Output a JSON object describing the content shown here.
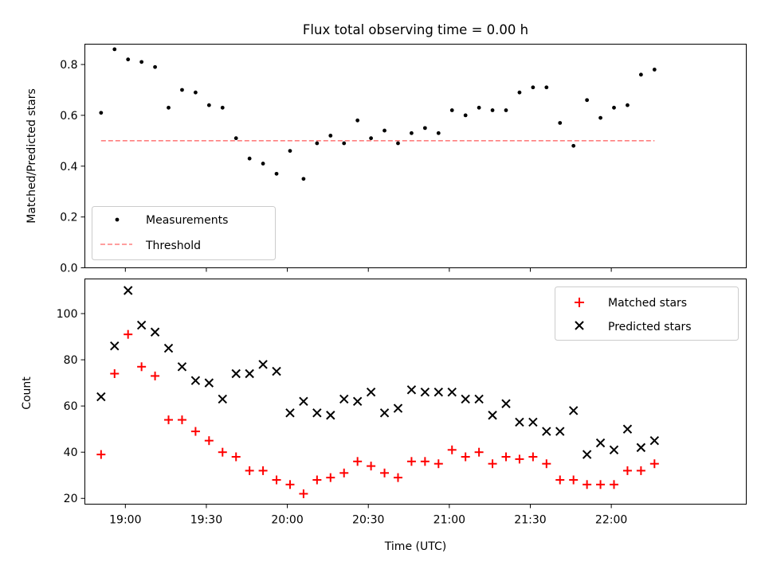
{
  "chart_data": [
    {
      "type": "scatter",
      "title": "Flux total observing time = 0.00 h",
      "ylabel": "Matched/Predicted stars",
      "xlabel": "",
      "xlim": [
        "18:45",
        "22:50"
      ],
      "ylim": [
        0,
        0.88
      ],
      "x_tick_labels": [
        "19:00",
        "19:30",
        "20:00",
        "20:30",
        "21:00",
        "21:30",
        "22:00"
      ],
      "y_tick_labels": [
        "0.0",
        "0.2",
        "0.4",
        "0.6",
        "0.8"
      ],
      "y_ticks": [
        0,
        0.2,
        0.4,
        0.6,
        0.8
      ],
      "legend": {
        "placement": "lower-left",
        "entries": [
          "Measurements",
          "Threshold"
        ]
      },
      "series": [
        {
          "name": "Measurements",
          "marker": "dot",
          "color": "#000000",
          "x": [
            "18:51",
            "18:56",
            "19:01",
            "19:06",
            "19:11",
            "19:16",
            "19:21",
            "19:26",
            "19:31",
            "19:36",
            "19:41",
            "19:46",
            "19:51",
            "19:56",
            "20:01",
            "20:06",
            "20:11",
            "20:16",
            "20:21",
            "20:26",
            "20:31",
            "20:36",
            "20:41",
            "20:46",
            "20:51",
            "20:56",
            "21:01",
            "21:06",
            "21:11",
            "21:16",
            "21:21",
            "21:26",
            "21:31",
            "21:36",
            "21:41",
            "21:46",
            "21:51",
            "21:56",
            "22:01",
            "22:06",
            "22:11",
            "22:16"
          ],
          "y": [
            0.61,
            0.86,
            0.82,
            0.81,
            0.79,
            0.63,
            0.7,
            0.69,
            0.64,
            0.63,
            0.51,
            0.43,
            0.41,
            0.37,
            0.46,
            0.35,
            0.49,
            0.52,
            0.49,
            0.58,
            0.51,
            0.54,
            0.49,
            0.53,
            0.55,
            0.53,
            0.62,
            0.6,
            0.63,
            0.62,
            0.62,
            0.69,
            0.71,
            0.71,
            0.57,
            0.48,
            0.66,
            0.59,
            0.63,
            0.64,
            0.76,
            0.78
          ]
        },
        {
          "name": "Threshold",
          "style": "dashed",
          "color": "#ff7f7f",
          "x": [
            "18:51",
            "22:16"
          ],
          "y": [
            0.5,
            0.5
          ]
        }
      ]
    },
    {
      "type": "scatter",
      "title": "",
      "ylabel": "Count",
      "xlabel": "Time (UTC)",
      "xlim": [
        "18:45",
        "22:50"
      ],
      "ylim": [
        17.5,
        115
      ],
      "x_tick_labels": [
        "19:00",
        "19:30",
        "20:00",
        "20:30",
        "21:00",
        "21:30",
        "22:00"
      ],
      "y_tick_labels": [
        "20",
        "40",
        "60",
        "80",
        "100"
      ],
      "y_ticks": [
        20,
        40,
        60,
        80,
        100
      ],
      "legend": {
        "placement": "top-right",
        "entries": [
          "Matched stars",
          "Predicted stars"
        ]
      },
      "series": [
        {
          "name": "Matched stars",
          "marker": "plus",
          "color": "#ff0000",
          "x": [
            "18:51",
            "18:56",
            "19:01",
            "19:06",
            "19:11",
            "19:16",
            "19:21",
            "19:26",
            "19:31",
            "19:36",
            "19:41",
            "19:46",
            "19:51",
            "19:56",
            "20:01",
            "20:06",
            "20:11",
            "20:16",
            "20:21",
            "20:26",
            "20:31",
            "20:36",
            "20:41",
            "20:46",
            "20:51",
            "20:56",
            "21:01",
            "21:06",
            "21:11",
            "21:16",
            "21:21",
            "21:26",
            "21:31",
            "21:36",
            "21:41",
            "21:46",
            "21:51",
            "21:56",
            "22:01",
            "22:06",
            "22:11",
            "22:16"
          ],
          "y": [
            39,
            74,
            91,
            77,
            73,
            54,
            54,
            49,
            45,
            40,
            38,
            32,
            32,
            28,
            26,
            22,
            28,
            29,
            31,
            36,
            34,
            31,
            29,
            36,
            36,
            35,
            41,
            38,
            40,
            35,
            38,
            37,
            38,
            35,
            28,
            28,
            26,
            26,
            26,
            32,
            32,
            35
          ]
        },
        {
          "name": "Predicted stars",
          "marker": "x",
          "color": "#000000",
          "x": [
            "18:51",
            "18:56",
            "19:01",
            "19:06",
            "19:11",
            "19:16",
            "19:21",
            "19:26",
            "19:31",
            "19:36",
            "19:41",
            "19:46",
            "19:51",
            "19:56",
            "20:01",
            "20:06",
            "20:11",
            "20:16",
            "20:21",
            "20:26",
            "20:31",
            "20:36",
            "20:41",
            "20:46",
            "20:51",
            "20:56",
            "21:01",
            "21:06",
            "21:11",
            "21:16",
            "21:21",
            "21:26",
            "21:31",
            "21:36",
            "21:41",
            "21:46",
            "21:51",
            "21:56",
            "22:01",
            "22:06",
            "22:11",
            "22:16"
          ],
          "y": [
            64,
            86,
            110,
            95,
            92,
            85,
            77,
            71,
            70,
            63,
            74,
            74,
            78,
            75,
            57,
            62,
            57,
            56,
            63,
            62,
            66,
            57,
            59,
            67,
            66,
            66,
            66,
            63,
            63,
            56,
            61,
            53,
            53,
            49,
            49,
            58,
            39,
            44,
            41,
            50,
            42,
            45
          ]
        }
      ]
    }
  ]
}
